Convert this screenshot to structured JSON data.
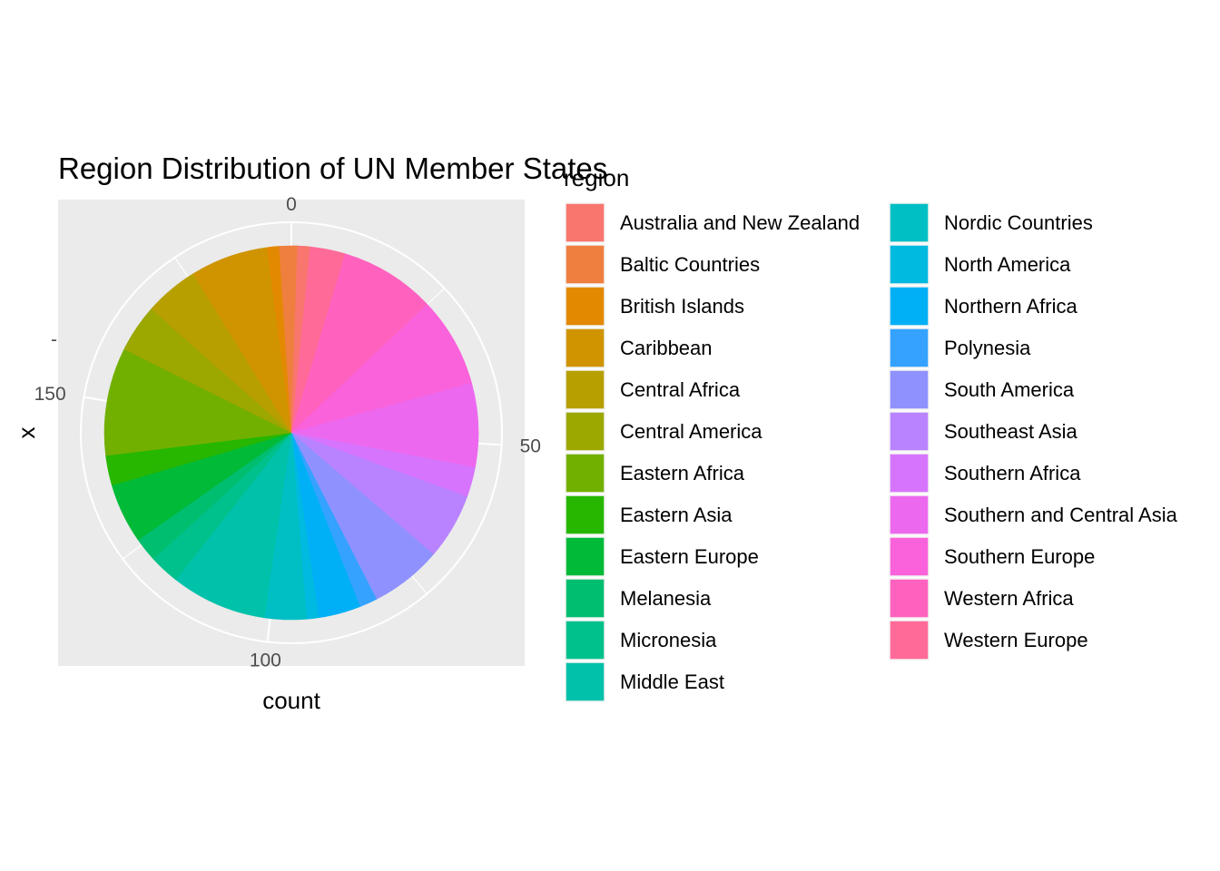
{
  "chart_data": {
    "type": "pie",
    "title": "Region Distribution of UN Member States",
    "xlabel": "count",
    "ylabel": "x",
    "y_tick_label": "-",
    "legend_title": "region",
    "legend_position": "right",
    "angle_ticks": [
      0,
      50,
      100,
      150
    ],
    "total": 193,
    "slices": [
      {
        "name": "Australia and New Zealand",
        "value": 2,
        "color": "#F8766D"
      },
      {
        "name": "Baltic Countries",
        "value": 3,
        "color": "#EF7F3E"
      },
      {
        "name": "British Islands",
        "value": 2,
        "color": "#E38900"
      },
      {
        "name": "Caribbean",
        "value": 13,
        "color": "#CF9400"
      },
      {
        "name": "Central Africa",
        "value": 9,
        "color": "#B79F00"
      },
      {
        "name": "Central America",
        "value": 8,
        "color": "#9CA700"
      },
      {
        "name": "Eastern Africa",
        "value": 18,
        "color": "#72B000"
      },
      {
        "name": "Eastern Asia",
        "value": 5,
        "color": "#27B700"
      },
      {
        "name": "Eastern Europe",
        "value": 10,
        "color": "#00BA38"
      },
      {
        "name": "Melanesia",
        "value": 4,
        "color": "#00BE70"
      },
      {
        "name": "Micronesia",
        "value": 5,
        "color": "#00C08B"
      },
      {
        "name": "Middle East",
        "value": 16,
        "color": "#00C1A9"
      },
      {
        "name": "Nordic Countries",
        "value": 7,
        "color": "#00BFC4"
      },
      {
        "name": "North America",
        "value": 2,
        "color": "#00BAE0"
      },
      {
        "name": "Northern Africa",
        "value": 7,
        "color": "#00B0F6"
      },
      {
        "name": "Polynesia",
        "value": 3,
        "color": "#35A2FF"
      },
      {
        "name": "South America",
        "value": 12,
        "color": "#8F91FF"
      },
      {
        "name": "Southeast Asia",
        "value": 11,
        "color": "#B983FF"
      },
      {
        "name": "Southern Africa",
        "value": 5,
        "color": "#D774FD"
      },
      {
        "name": "Southern and Central Asia",
        "value": 14,
        "color": "#EC69EF"
      },
      {
        "name": "Southern Europe",
        "value": 15,
        "color": "#FA62DB"
      },
      {
        "name": "Western Africa",
        "value": 16,
        "color": "#FF62BE"
      },
      {
        "name": "Western Europe",
        "value": 9,
        "color": "#FF6A98"
      }
    ]
  },
  "colors": {
    "panel_background": "#EBEBEB",
    "grid_line": "#FFFFFF",
    "tick_text": "#4D4D4D"
  }
}
